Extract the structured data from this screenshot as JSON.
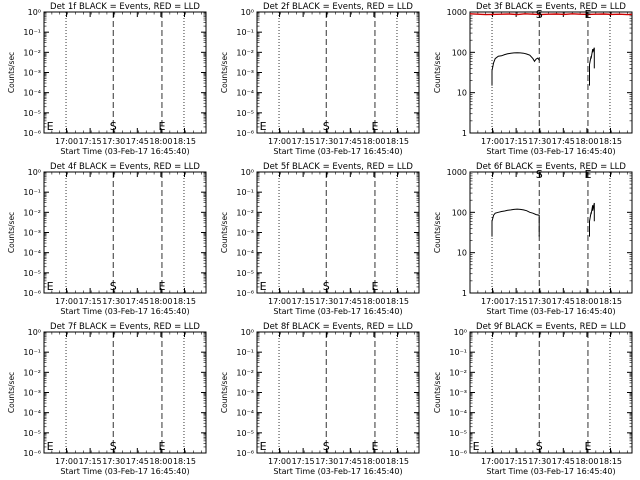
{
  "figure": {
    "xlabel_text": "Start Time (03-Feb-17 16:45:40)",
    "ylabel_text": "Counts/sec",
    "x_tick_labels": [
      "17:00",
      "17:15",
      "17:30",
      "17:45",
      "18:00",
      "18:15"
    ],
    "colors": {
      "events": "#000000",
      "lld": "#cc0000"
    }
  },
  "chart_data": [
    {
      "type": "line",
      "title": "Det 1f BLACK = Events, RED = LLD",
      "xlabel": "Start Time (03-Feb-17 16:45:40)",
      "ylabel": "Counts/sec",
      "y_scale": "log",
      "ylim": [
        1e-06,
        1
      ],
      "y_tick_labels": [
        "10⁻⁶",
        "10⁻⁵",
        "10⁻⁴",
        "10⁻³",
        "10⁻²",
        "10⁻¹",
        "10⁰"
      ],
      "x_tick_labels": [
        "17:00",
        "17:15",
        "17:30",
        "17:45",
        "18:00",
        "18:15"
      ],
      "xlim_minutes_after_start": [
        0,
        103
      ],
      "dotted_lines_min": [
        14,
        89
      ],
      "dashed_lines_min": [
        44,
        75
      ],
      "markers": [
        {
          "text": "E",
          "x_min": 1
        },
        {
          "text": "S",
          "x_min": 44
        },
        {
          "text": "E",
          "x_min": 75
        }
      ],
      "series": []
    },
    {
      "type": "line",
      "title": "Det 2f BLACK = Events, RED = LLD",
      "xlabel": "Start Time (03-Feb-17 16:45:40)",
      "ylabel": "Counts/sec",
      "y_scale": "log",
      "ylim": [
        1e-06,
        1
      ],
      "y_tick_labels": [
        "10⁻⁶",
        "10⁻⁵",
        "10⁻⁴",
        "10⁻³",
        "10⁻²",
        "10⁻¹",
        "10⁰"
      ],
      "x_tick_labels": [
        "17:00",
        "17:15",
        "17:30",
        "17:45",
        "18:00",
        "18:15"
      ],
      "xlim_minutes_after_start": [
        0,
        103
      ],
      "dotted_lines_min": [
        14,
        89
      ],
      "dashed_lines_min": [
        44,
        75
      ],
      "markers": [
        {
          "text": "E",
          "x_min": 1
        },
        {
          "text": "S",
          "x_min": 44
        },
        {
          "text": "E",
          "x_min": 75
        }
      ],
      "series": []
    },
    {
      "type": "line",
      "title": "Det 3f BLACK = Events, RED = LLD",
      "xlabel": "Start Time (03-Feb-17 16:45:40)",
      "ylabel": "Counts/sec",
      "y_scale": "log",
      "ylim": [
        1,
        1000
      ],
      "y_tick_labels": [
        "1",
        "10",
        "100",
        "1000"
      ],
      "x_tick_labels": [
        "17:00",
        "17:15",
        "17:30",
        "17:45",
        "18:00",
        "18:15"
      ],
      "xlim_minutes_after_start": [
        0,
        103
      ],
      "dotted_lines_min": [
        14,
        89
      ],
      "dashed_lines_min": [
        44,
        75
      ],
      "markers": [
        {
          "text": "S",
          "x_min": 44
        },
        {
          "text": "E",
          "x_min": 75
        }
      ],
      "series": [
        {
          "color": "#cc0000",
          "points": [
            [
              0,
              900
            ],
            [
              5,
              880
            ],
            [
              10,
              860
            ],
            [
              14,
              870
            ],
            [
              20,
              880
            ],
            [
              25,
              890
            ],
            [
              30,
              860
            ],
            [
              35,
              900
            ],
            [
              40,
              880
            ],
            [
              44,
              860
            ],
            [
              50,
              880
            ],
            [
              55,
              890
            ],
            [
              60,
              870
            ],
            [
              65,
              900
            ],
            [
              70,
              880
            ],
            [
              75,
              870
            ],
            [
              80,
              880
            ],
            [
              85,
              890
            ],
            [
              90,
              870
            ],
            [
              95,
              880
            ],
            [
              100,
              860
            ],
            [
              103,
              870
            ]
          ]
        },
        {
          "color": "#000000",
          "points": [
            [
              14,
              15
            ],
            [
              14,
              35
            ],
            [
              15,
              55
            ],
            [
              16,
              70
            ],
            [
              18,
              80
            ],
            [
              20,
              82
            ],
            [
              22,
              88
            ],
            [
              24,
              92
            ],
            [
              26,
              95
            ],
            [
              28,
              97
            ],
            [
              30,
              98
            ],
            [
              32,
              97
            ],
            [
              34,
              95
            ],
            [
              36,
              91
            ],
            [
              38,
              85
            ],
            [
              40,
              70
            ],
            [
              41,
              60
            ],
            [
              42,
              68
            ],
            [
              43,
              72
            ],
            [
              44,
              65
            ],
            [
              44,
              72
            ]
          ]
        },
        {
          "color": "#000000",
          "points": [
            [
              76,
              15
            ],
            [
              76,
              50
            ],
            [
              77,
              80
            ],
            [
              77,
              70
            ],
            [
              78,
              120
            ],
            [
              78,
              100
            ],
            [
              79,
              130
            ],
            [
              79,
              40
            ]
          ]
        }
      ]
    },
    {
      "type": "line",
      "title": "Det 4f BLACK = Events, RED = LLD",
      "xlabel": "Start Time (03-Feb-17 16:45:40)",
      "ylabel": "Counts/sec",
      "y_scale": "log",
      "ylim": [
        1e-06,
        1
      ],
      "y_tick_labels": [
        "10⁻⁶",
        "10⁻⁵",
        "10⁻⁴",
        "10⁻³",
        "10⁻²",
        "10⁻¹",
        "10⁰"
      ],
      "x_tick_labels": [
        "17:00",
        "17:15",
        "17:30",
        "17:45",
        "18:00",
        "18:15"
      ],
      "xlim_minutes_after_start": [
        0,
        103
      ],
      "dotted_lines_min": [
        14,
        89
      ],
      "dashed_lines_min": [
        44,
        75
      ],
      "markers": [
        {
          "text": "E",
          "x_min": 1
        },
        {
          "text": "S",
          "x_min": 44
        },
        {
          "text": "E",
          "x_min": 75
        }
      ],
      "series": []
    },
    {
      "type": "line",
      "title": "Det 5f BLACK = Events, RED = LLD",
      "xlabel": "Start Time (03-Feb-17 16:45:40)",
      "ylabel": "Counts/sec",
      "y_scale": "log",
      "ylim": [
        1e-06,
        1
      ],
      "y_tick_labels": [
        "10⁻⁶",
        "10⁻⁵",
        "10⁻⁴",
        "10⁻³",
        "10⁻²",
        "10⁻¹",
        "10⁰"
      ],
      "x_tick_labels": [
        "17:00",
        "17:15",
        "17:30",
        "17:45",
        "18:00",
        "18:15"
      ],
      "xlim_minutes_after_start": [
        0,
        103
      ],
      "dotted_lines_min": [
        14,
        89
      ],
      "dashed_lines_min": [
        44,
        75
      ],
      "markers": [
        {
          "text": "E",
          "x_min": 1
        },
        {
          "text": "S",
          "x_min": 44
        },
        {
          "text": "E",
          "x_min": 75
        }
      ],
      "series": []
    },
    {
      "type": "line",
      "title": "Det 6f BLACK = Events, RED = LLD",
      "xlabel": "Start Time (03-Feb-17 16:45:40)",
      "ylabel": "Counts/sec",
      "y_scale": "log",
      "ylim": [
        1,
        1000
      ],
      "y_tick_labels": [
        "1",
        "10",
        "100",
        "1000"
      ],
      "x_tick_labels": [
        "17:00",
        "17:15",
        "17:30",
        "17:45",
        "18:00",
        "18:15"
      ],
      "xlim_minutes_after_start": [
        0,
        103
      ],
      "dotted_lines_min": [
        14,
        89
      ],
      "dashed_lines_min": [
        44,
        75
      ],
      "markers": [
        {
          "text": "S",
          "x_min": 44
        },
        {
          "text": "E",
          "x_min": 75
        }
      ],
      "series": [
        {
          "color": "#000000",
          "points": [
            [
              14,
              25
            ],
            [
              14,
              60
            ],
            [
              15,
              85
            ],
            [
              16,
              95
            ],
            [
              18,
              100
            ],
            [
              20,
              105
            ],
            [
              22,
              108
            ],
            [
              24,
              112
            ],
            [
              26,
              115
            ],
            [
              28,
              118
            ],
            [
              30,
              120
            ],
            [
              32,
              118
            ],
            [
              34,
              115
            ],
            [
              36,
              110
            ],
            [
              38,
              100
            ],
            [
              40,
              95
            ],
            [
              42,
              88
            ],
            [
              44,
              85
            ],
            [
              44,
              25
            ]
          ]
        },
        {
          "color": "#000000",
          "points": [
            [
              76,
              25
            ],
            [
              76,
              60
            ],
            [
              77,
              100
            ],
            [
              77,
              90
            ],
            [
              78,
              150
            ],
            [
              78,
              110
            ],
            [
              79,
              170
            ],
            [
              79,
              60
            ]
          ]
        }
      ]
    },
    {
      "type": "line",
      "title": "Det 7f BLACK = Events, RED = LLD",
      "xlabel": "Start Time (03-Feb-17 16:45:40)",
      "ylabel": "Counts/sec",
      "y_scale": "log",
      "ylim": [
        1e-06,
        1
      ],
      "y_tick_labels": [
        "10⁻⁶",
        "10⁻⁵",
        "10⁻⁴",
        "10⁻³",
        "10⁻²",
        "10⁻¹",
        "10⁰"
      ],
      "x_tick_labels": [
        "17:00",
        "17:15",
        "17:30",
        "17:45",
        "18:00",
        "18:15"
      ],
      "xlim_minutes_after_start": [
        0,
        103
      ],
      "dotted_lines_min": [
        14,
        89
      ],
      "dashed_lines_min": [
        44,
        75
      ],
      "markers": [
        {
          "text": "E",
          "x_min": 1
        },
        {
          "text": "S",
          "x_min": 44
        },
        {
          "text": "E",
          "x_min": 75
        }
      ],
      "series": []
    },
    {
      "type": "line",
      "title": "Det 8f BLACK = Events, RED = LLD",
      "xlabel": "Start Time (03-Feb-17 16:45:40)",
      "ylabel": "Counts/sec",
      "y_scale": "log",
      "ylim": [
        1e-06,
        1
      ],
      "y_tick_labels": [
        "10⁻⁶",
        "10⁻⁵",
        "10⁻⁴",
        "10⁻³",
        "10⁻²",
        "10⁻¹",
        "10⁰"
      ],
      "x_tick_labels": [
        "17:00",
        "17:15",
        "17:30",
        "17:45",
        "18:00",
        "18:15"
      ],
      "xlim_minutes_after_start": [
        0,
        103
      ],
      "dotted_lines_min": [
        14,
        89
      ],
      "dashed_lines_min": [
        44,
        75
      ],
      "markers": [
        {
          "text": "E",
          "x_min": 1
        },
        {
          "text": "S",
          "x_min": 44
        },
        {
          "text": "E",
          "x_min": 75
        }
      ],
      "series": []
    },
    {
      "type": "line",
      "title": "Det 9f BLACK = Events, RED = LLD",
      "xlabel": "Start Time (03-Feb-17 16:45:40)",
      "ylabel": "Counts/sec",
      "y_scale": "log",
      "ylim": [
        1e-06,
        1
      ],
      "y_tick_labels": [
        "10⁻⁶",
        "10⁻⁵",
        "10⁻⁴",
        "10⁻³",
        "10⁻²",
        "10⁻¹",
        "10⁰"
      ],
      "x_tick_labels": [
        "17:00",
        "17:15",
        "17:30",
        "17:45",
        "18:00",
        "18:15"
      ],
      "xlim_minutes_after_start": [
        0,
        103
      ],
      "dotted_lines_min": [
        14,
        89
      ],
      "dashed_lines_min": [
        44,
        75
      ],
      "markers": [
        {
          "text": "E",
          "x_min": 1
        },
        {
          "text": "S",
          "x_min": 44
        },
        {
          "text": "E",
          "x_min": 75
        }
      ],
      "series": []
    }
  ]
}
